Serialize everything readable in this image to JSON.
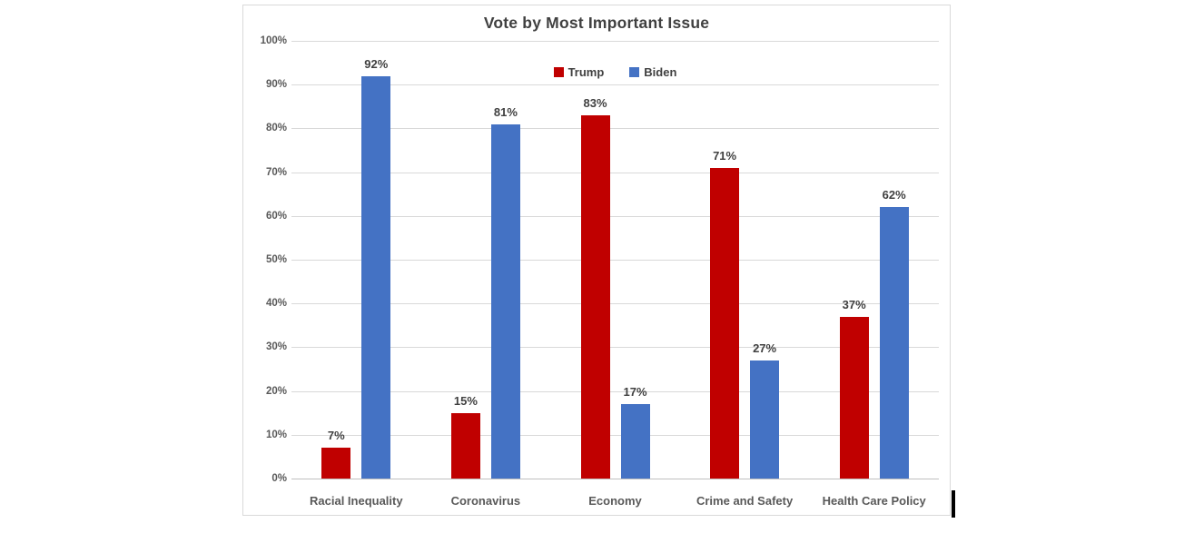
{
  "chart_data": {
    "type": "bar",
    "title": "Vote by Most Important Issue",
    "categories": [
      "Racial Inequality",
      "Coronavirus",
      "Economy",
      "Crime and Safety",
      "Health Care Policy"
    ],
    "series": [
      {
        "name": "Trump",
        "color": "#C00000",
        "values": [
          7,
          15,
          83,
          71,
          37
        ],
        "labels": [
          "7%",
          "15%",
          "83%",
          "71%",
          "37%"
        ]
      },
      {
        "name": "Biden",
        "color": "#4472C4",
        "values": [
          92,
          81,
          17,
          27,
          62
        ],
        "labels": [
          "92%",
          "81%",
          "17%",
          "27%",
          "62%"
        ]
      }
    ],
    "y_ticks": [
      "100%",
      "90%",
      "80%",
      "70%",
      "60%",
      "50%",
      "40%",
      "30%",
      "20%",
      "10%",
      "0%"
    ],
    "ylim": [
      0,
      100
    ],
    "y_tick_step": 10,
    "grid": true,
    "legend_position": "top-center",
    "colors": {
      "gridline": "#D9D9D9",
      "axis_line": "#BFBFBF",
      "chart_border": "#D9D9D9",
      "title_text": "#404040",
      "data_label_text": "#404040",
      "axis_label_text": "#595959",
      "background": "#FFFFFF",
      "cursor": "#000000"
    }
  }
}
